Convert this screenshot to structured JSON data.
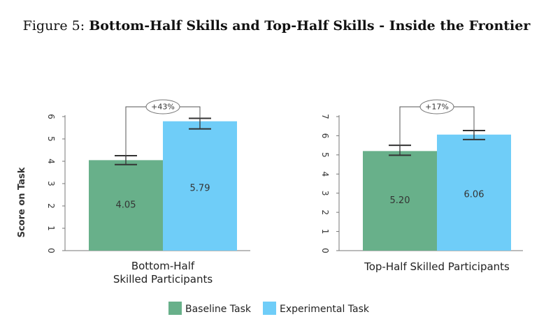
{
  "figure": {
    "prefix": "Figure 5:",
    "title": "Bottom-Half Skills and Top-Half Skills - Inside the Frontier"
  },
  "colors": {
    "baseline": "#68B08A",
    "experimental": "#6FCDF8"
  },
  "chart_data": [
    {
      "type": "bar",
      "category_label": [
        "Bottom-Half",
        "Skilled Participants"
      ],
      "ylabel": "Score on Task",
      "ylim": [
        0,
        6
      ],
      "yticks": [
        0,
        1,
        2,
        3,
        4,
        5,
        6
      ],
      "series": [
        {
          "name": "Baseline Task",
          "value": 4.05,
          "value_label": "4.05",
          "error_low": 3.85,
          "error_high": 4.25
        },
        {
          "name": "Experimental Task",
          "value": 5.79,
          "value_label": "5.79",
          "error_low": 5.45,
          "error_high": 5.92
        }
      ],
      "annotation": "+43%"
    },
    {
      "type": "bar",
      "category_label": [
        "Top-Half Skilled Participants"
      ],
      "ylabel": "",
      "ylim": [
        0,
        7
      ],
      "yticks": [
        0,
        1,
        2,
        3,
        4,
        5,
        6,
        7
      ],
      "series": [
        {
          "name": "Baseline Task",
          "value": 5.2,
          "value_label": "5.20",
          "error_low": 4.98,
          "error_high": 5.5
        },
        {
          "name": "Experimental Task",
          "value": 6.06,
          "value_label": "6.06",
          "error_low": 5.8,
          "error_high": 6.27
        }
      ],
      "annotation": "+17%"
    }
  ],
  "legend": [
    {
      "label": "Baseline Task",
      "color": "#68B08A"
    },
    {
      "label": "Experimental Task",
      "color": "#6FCDF8"
    }
  ]
}
